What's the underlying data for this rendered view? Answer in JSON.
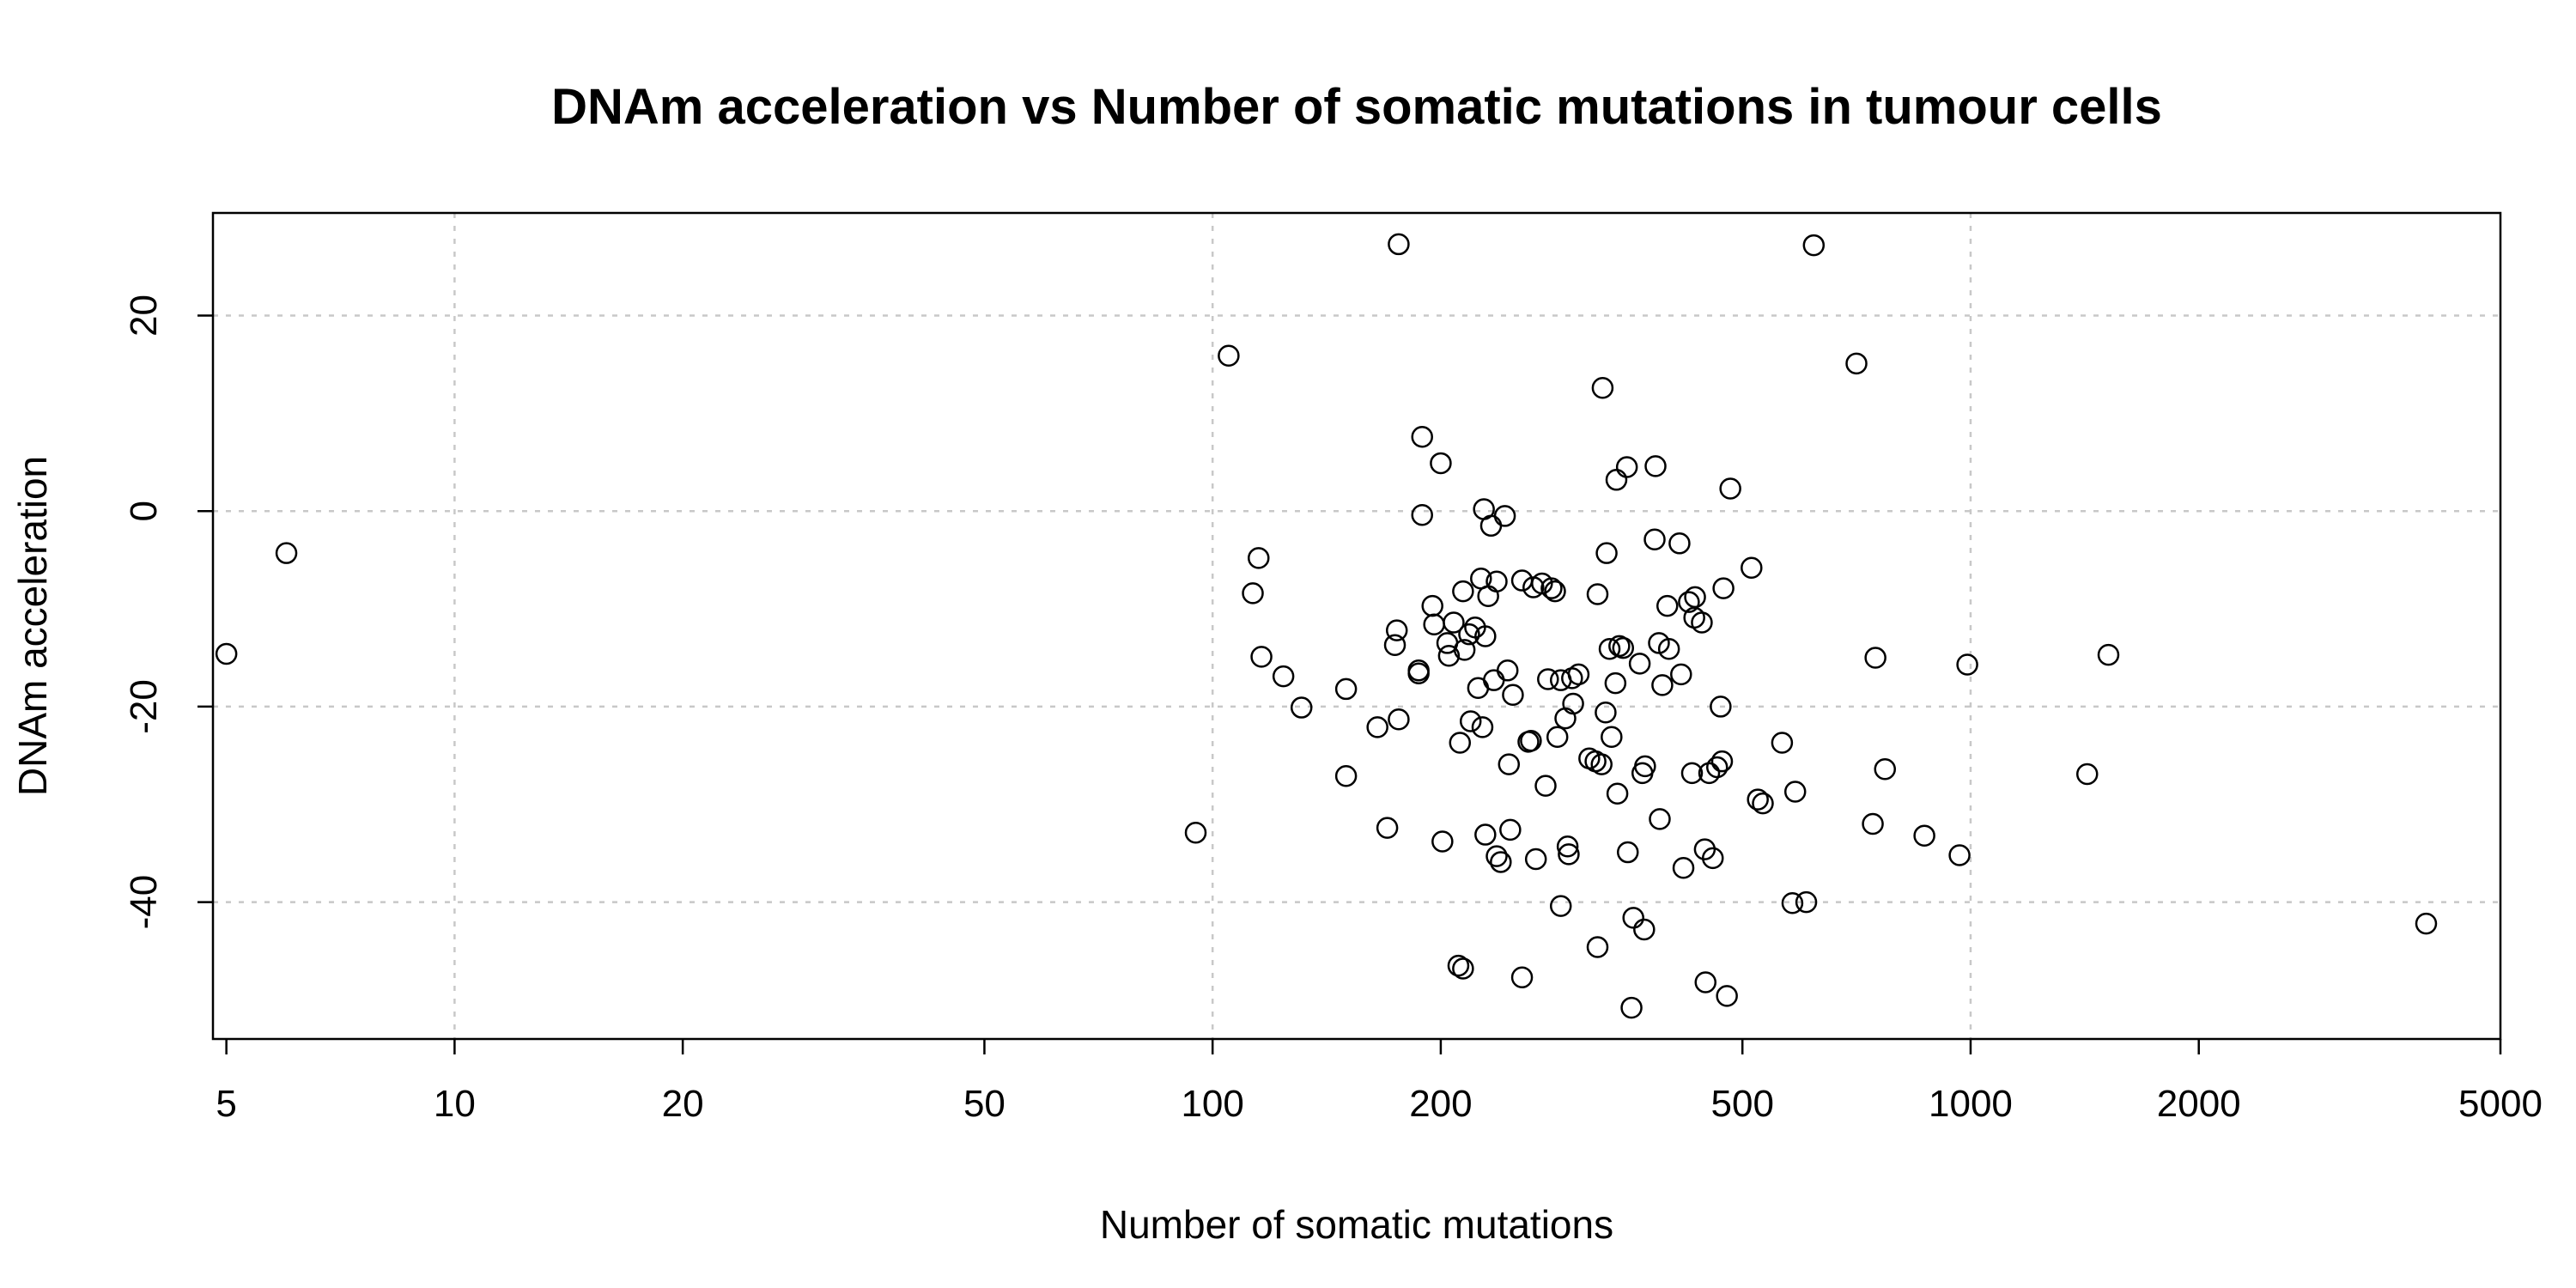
{
  "chart_data": {
    "type": "scatter",
    "title": "DNAm acceleration vs Number of somatic mutations in tumour cells",
    "xlabel": "Number of somatic mutations",
    "ylabel": "DNAm acceleration",
    "x_scale": "log",
    "xlim": [
      4.8,
      5000
    ],
    "ylim": [
      -54,
      30.5
    ],
    "x_ticks": [
      5,
      10,
      20,
      50,
      100,
      200,
      500,
      1000,
      2000,
      5000
    ],
    "y_ticks": [
      -40,
      -20,
      0,
      20
    ],
    "grid": true,
    "points": [
      [
        5,
        -14.6
      ],
      [
        6,
        -4.3
      ],
      [
        95,
        -32.9
      ],
      [
        105,
        15.9
      ],
      [
        113,
        -8.4
      ],
      [
        115,
        -4.8
      ],
      [
        116,
        -14.9
      ],
      [
        124,
        -16.9
      ],
      [
        131,
        -20.1
      ],
      [
        150,
        -18.2
      ],
      [
        150,
        -27.1
      ],
      [
        165,
        -22.1
      ],
      [
        170,
        -32.4
      ],
      [
        175,
        -12.2
      ],
      [
        174,
        -13.7
      ],
      [
        176,
        -21.3
      ],
      [
        176,
        27.3
      ],
      [
        187,
        -16.3
      ],
      [
        187,
        -16.6
      ],
      [
        189,
        -0.4
      ],
      [
        189,
        7.6
      ],
      [
        195,
        -9.7
      ],
      [
        196,
        -11.6
      ],
      [
        200,
        4.9
      ],
      [
        201,
        -33.8
      ],
      [
        204,
        -13.5
      ],
      [
        205,
        -14.8
      ],
      [
        208,
        -11.4
      ],
      [
        211,
        -46.5
      ],
      [
        212,
        -23.7
      ],
      [
        214,
        -46.8
      ],
      [
        214,
        -8.2
      ],
      [
        215,
        -14.2
      ],
      [
        218,
        -12.6
      ],
      [
        219,
        -21.5
      ],
      [
        222,
        -11.9
      ],
      [
        224,
        -18.1
      ],
      [
        226,
        -6.9
      ],
      [
        227,
        -22.1
      ],
      [
        228,
        0.2
      ],
      [
        229,
        -12.8
      ],
      [
        229,
        -33.1
      ],
      [
        231,
        -8.7
      ],
      [
        233,
        -1.5
      ],
      [
        235,
        -17.3
      ],
      [
        237,
        -7.2
      ],
      [
        237,
        -35.3
      ],
      [
        240,
        -35.9
      ],
      [
        243,
        -0.5
      ],
      [
        245,
        -16.3
      ],
      [
        246,
        -25.9
      ],
      [
        247,
        -32.6
      ],
      [
        249,
        -18.8
      ],
      [
        256,
        -47.7
      ],
      [
        256,
        -7.1
      ],
      [
        261,
        -23.6
      ],
      [
        263,
        -23.5
      ],
      [
        265,
        -7.8
      ],
      [
        267,
        -35.6
      ],
      [
        272,
        -7.4
      ],
      [
        275,
        -28.1
      ],
      [
        277,
        -17.2
      ],
      [
        280,
        -7.9
      ],
      [
        283,
        -8.2
      ],
      [
        285,
        -23.1
      ],
      [
        288,
        -40.4
      ],
      [
        288,
        -17.3
      ],
      [
        292,
        -21.2
      ],
      [
        294,
        -34.3
      ],
      [
        295,
        -35.1
      ],
      [
        298,
        -17.1
      ],
      [
        299,
        -19.7
      ],
      [
        304,
        -16.7
      ],
      [
        314,
        -25.3
      ],
      [
        320,
        -25.6
      ],
      [
        322,
        -44.6
      ],
      [
        322,
        -8.5
      ],
      [
        326,
        -25.9
      ],
      [
        327,
        12.6
      ],
      [
        330,
        -20.6
      ],
      [
        331,
        -4.3
      ],
      [
        334,
        -14.1
      ],
      [
        336,
        -23.1
      ],
      [
        340,
        -17.6
      ],
      [
        341,
        3.2
      ],
      [
        342,
        -28.9
      ],
      [
        344,
        -13.8
      ],
      [
        348,
        -14
      ],
      [
        352,
        4.5
      ],
      [
        353,
        -34.9
      ],
      [
        357,
        -50.8
      ],
      [
        359,
        -41.6
      ],
      [
        366,
        -15.6
      ],
      [
        369,
        -26.8
      ],
      [
        371,
        -42.8
      ],
      [
        372,
        -26.1
      ],
      [
        383,
        -2.9
      ],
      [
        384,
        4.6
      ],
      [
        388,
        -13.5
      ],
      [
        389,
        -31.5
      ],
      [
        392,
        -17.8
      ],
      [
        398,
        -9.7
      ],
      [
        400,
        -14.1
      ],
      [
        413,
        -3.3
      ],
      [
        415,
        -16.7
      ],
      [
        418,
        -36.5
      ],
      [
        425,
        -9.3
      ],
      [
        429,
        -26.8
      ],
      [
        432,
        -10.9
      ],
      [
        433,
        -8.8
      ],
      [
        442,
        -11.4
      ],
      [
        446,
        -34.6
      ],
      [
        447,
        -48.2
      ],
      [
        452,
        -26.8
      ],
      [
        457,
        -35.5
      ],
      [
        463,
        -26.2
      ],
      [
        468,
        -20
      ],
      [
        470,
        -25.6
      ],
      [
        472,
        -7.9
      ],
      [
        477,
        -49.6
      ],
      [
        482,
        2.3
      ],
      [
        514,
        -5.8
      ],
      [
        524,
        -29.5
      ],
      [
        532,
        -29.9
      ],
      [
        564,
        -23.7
      ],
      [
        582,
        -40.1
      ],
      [
        587,
        -28.7
      ],
      [
        607,
        -40
      ],
      [
        621,
        27.2
      ],
      [
        707,
        15.1
      ],
      [
        743,
        -32
      ],
      [
        749,
        -15
      ],
      [
        771,
        -26.4
      ],
      [
        869,
        -33.2
      ],
      [
        967,
        -35.2
      ],
      [
        990,
        -15.7
      ],
      [
        1425,
        -26.9
      ],
      [
        1520,
        -14.7
      ],
      [
        3990,
        -42.2
      ]
    ]
  }
}
